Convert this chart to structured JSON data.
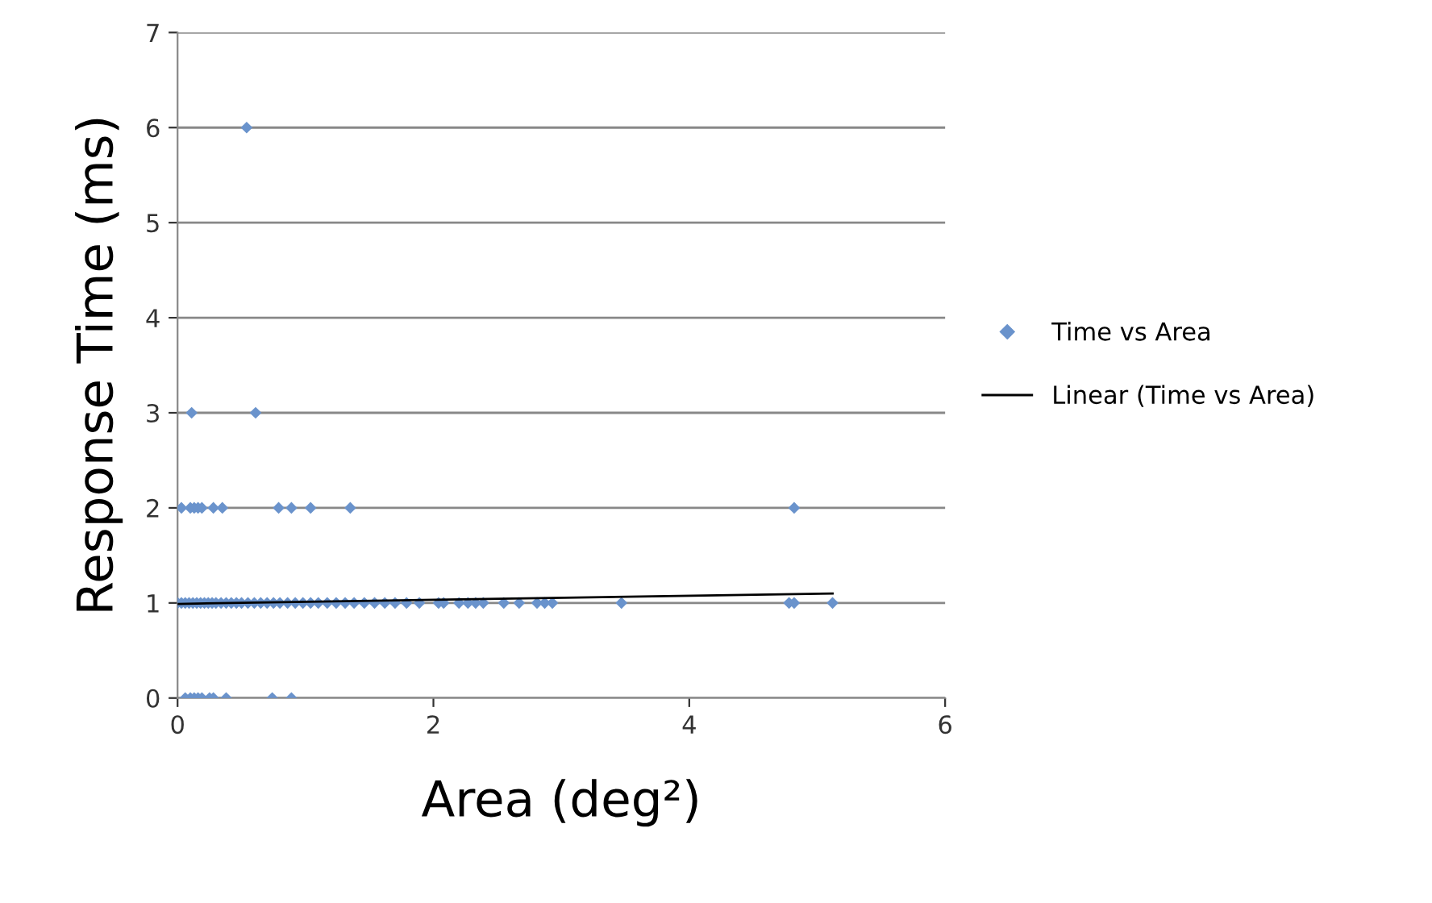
{
  "chart_data": {
    "type": "scatter",
    "xlabel": "Area (deg²)",
    "ylabel": "Response Time (ms)",
    "xlim": [
      0,
      6
    ],
    "xticks": [
      0,
      2,
      4,
      6
    ],
    "ylim": [
      0,
      7
    ],
    "yticks": [
      0,
      1,
      2,
      3,
      4,
      5,
      6,
      7
    ],
    "grid": "y",
    "legend": "right",
    "marker": "diamond",
    "series": [
      {
        "name": "Time vs Area",
        "color": "#6a93cc",
        "x": [
          0.54,
          0.11,
          0.61,
          0.03,
          0.1,
          0.13,
          0.16,
          0.19,
          0.28,
          0.35,
          0.79,
          0.89,
          1.04,
          1.35,
          4.82,
          0.06,
          0.1,
          0.13,
          0.16,
          0.19,
          0.25,
          0.28,
          0.38,
          0.74,
          0.89,
          0.0,
          0.03,
          0.06,
          0.09,
          0.12,
          0.15,
          0.18,
          0.21,
          0.24,
          0.27,
          0.3,
          0.34,
          0.38,
          0.42,
          0.46,
          0.5,
          0.55,
          0.6,
          0.65,
          0.7,
          0.75,
          0.8,
          0.86,
          0.92,
          0.98,
          1.04,
          1.1,
          1.17,
          1.24,
          1.31,
          1.38,
          1.46,
          1.54,
          1.62,
          1.7,
          1.79,
          1.89,
          2.04,
          2.08,
          2.2,
          2.27,
          2.33,
          2.39,
          2.55,
          2.67,
          2.81,
          2.87,
          2.93,
          3.47,
          4.78,
          4.82,
          5.12
        ],
        "values": [
          6,
          3,
          3,
          2,
          2,
          2,
          2,
          2,
          2,
          2,
          2,
          2,
          2,
          2,
          2,
          0,
          0,
          0,
          0,
          0,
          0,
          0,
          0,
          0,
          0,
          1,
          1,
          1,
          1,
          1,
          1,
          1,
          1,
          1,
          1,
          1,
          1,
          1,
          1,
          1,
          1,
          1,
          1,
          1,
          1,
          1,
          1,
          1,
          1,
          1,
          1,
          1,
          1,
          1,
          1,
          1,
          1,
          1,
          1,
          1,
          1,
          1,
          1,
          1,
          1,
          1,
          1,
          1,
          1,
          1,
          1,
          1,
          1,
          1,
          1,
          1,
          1
        ]
      },
      {
        "name": "Linear (Time vs Area)",
        "type": "line",
        "color": "#000000",
        "marker": "none",
        "line_style": "solid",
        "x": [
          0.0,
          5.12
        ],
        "values": [
          0.99,
          1.1
        ]
      }
    ]
  }
}
